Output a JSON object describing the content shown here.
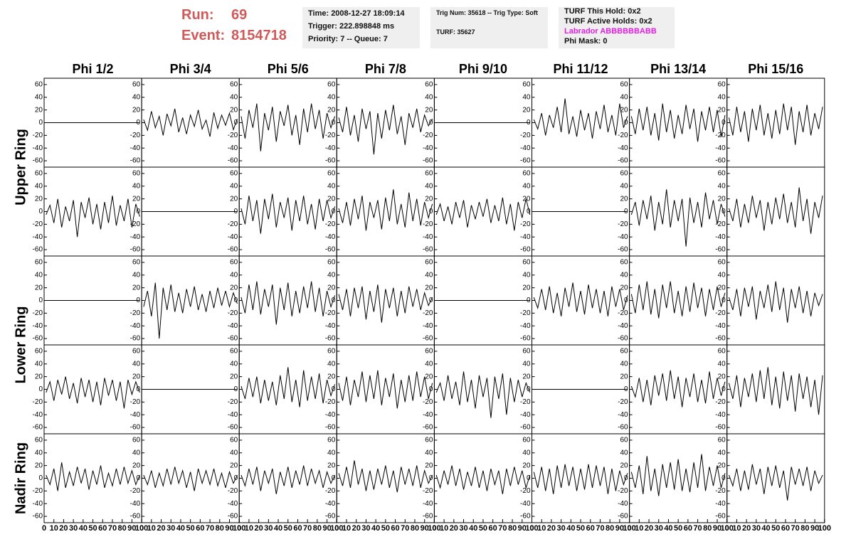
{
  "header": {
    "run_label": "Run:",
    "run": "69",
    "event_label": "Event:",
    "event": "8154718",
    "info": [
      [
        "Time: 2008-12-27 18:09:14",
        "Trigger: 222.898848 ms",
        "Priority: 7 -- Queue: 7"
      ],
      [
        "Trig Num: 35618 -- Trig Type: Soft",
        "TURF: 35627"
      ],
      [
        "TURF This Hold: 0x2",
        "TURF Active Holds: 0x2",
        "Labrador ABBBBBBABB",
        "Phi Mask: 0"
      ]
    ]
  },
  "chart_data": {
    "type": "line",
    "color": "#000000",
    "columns": [
      "Phi 1/2",
      "Phi 3/4",
      "Phi 5/6",
      "Phi 7/8",
      "Phi 9/10",
      "Phi 11/12",
      "Phi 13/14",
      "Phi 15/16"
    ],
    "row_labels": [
      "Upper Ring",
      null,
      "Lower Ring",
      null,
      "Nadir Ring"
    ],
    "xlim": [
      0,
      100
    ],
    "ylim": [
      -70,
      70
    ],
    "xticks": [
      0,
      10,
      20,
      30,
      40,
      50,
      60,
      70,
      80,
      90,
      100
    ],
    "yticks": [
      -60,
      -40,
      -20,
      0,
      20,
      40,
      60
    ],
    "x": [
      2,
      6,
      10,
      14,
      18,
      22,
      26,
      30,
      34,
      38,
      42,
      46,
      50,
      54,
      58,
      62,
      66,
      70,
      74,
      78,
      82,
      86,
      90,
      94,
      98
    ],
    "series": [
      {
        "values": [
          0,
          0,
          0,
          0,
          0,
          0,
          0,
          0,
          0,
          0,
          0,
          0,
          0,
          0,
          0,
          0,
          0,
          0,
          0,
          0,
          0,
          0,
          0,
          0,
          0
        ]
      },
      {
        "values": [
          5,
          -12,
          18,
          -8,
          10,
          -20,
          14,
          -5,
          22,
          -15,
          8,
          -18,
          12,
          -6,
          20,
          -10,
          4,
          -22,
          16,
          -9,
          12,
          -4,
          15,
          -11,
          6
        ]
      },
      {
        "values": [
          10,
          -25,
          20,
          -8,
          30,
          -45,
          15,
          -12,
          25,
          -30,
          18,
          -5,
          28,
          -20,
          12,
          -35,
          22,
          -15,
          30,
          -10,
          20,
          -25,
          15,
          -8,
          10
        ]
      },
      {
        "values": [
          8,
          -15,
          25,
          -20,
          12,
          -30,
          22,
          -10,
          18,
          -50,
          15,
          -25,
          20,
          -12,
          28,
          -18,
          10,
          -35,
          15,
          -8,
          22,
          -15,
          12,
          -5,
          6
        ]
      },
      {
        "values": [
          0,
          0,
          0,
          0,
          0,
          0,
          0,
          0,
          0,
          0,
          0,
          0,
          0,
          0,
          0,
          0,
          0,
          0,
          0,
          0,
          0,
          0,
          0,
          0,
          0
        ]
      },
      {
        "values": [
          5,
          -10,
          15,
          -20,
          12,
          -8,
          25,
          -15,
          38,
          -18,
          10,
          -22,
          20,
          -12,
          15,
          -25,
          18,
          -10,
          28,
          -15,
          12,
          -20,
          30,
          -8,
          10
        ]
      },
      {
        "values": [
          10,
          -18,
          22,
          -12,
          25,
          -20,
          15,
          -28,
          30,
          -15,
          20,
          -25,
          12,
          -18,
          28,
          -10,
          22,
          -30,
          18,
          -12,
          25,
          -15,
          20,
          -22,
          12
        ]
      },
      {
        "values": [
          8,
          -20,
          25,
          -15,
          18,
          -30,
          22,
          -12,
          28,
          -20,
          15,
          -25,
          20,
          -18,
          30,
          -12,
          25,
          -35,
          18,
          -15,
          28,
          -20,
          15,
          -10,
          25
        ]
      },
      {
        "values": [
          -5,
          10,
          -18,
          20,
          -25,
          8,
          -15,
          18,
          -40,
          15,
          -10,
          22,
          -20,
          12,
          -28,
          15,
          -18,
          25,
          -22,
          10,
          -15,
          20,
          -25,
          12,
          -8
        ]
      },
      {
        "values": [
          0,
          0,
          0,
          0,
          0,
          0,
          0,
          0,
          0,
          0,
          0,
          0,
          0,
          0,
          0,
          0,
          0,
          0,
          0,
          0,
          0,
          0,
          0,
          0,
          0
        ]
      },
      {
        "values": [
          5,
          -20,
          25,
          -15,
          18,
          -35,
          20,
          -12,
          28,
          -25,
          15,
          -10,
          22,
          -30,
          18,
          -15,
          25,
          -20,
          12,
          -28,
          20,
          -15,
          18,
          -10,
          8
        ]
      },
      {
        "values": [
          5,
          -18,
          15,
          -22,
          20,
          -12,
          25,
          -30,
          15,
          -10,
          18,
          -28,
          22,
          -15,
          35,
          -20,
          12,
          -25,
          30,
          -15,
          20,
          -22,
          15,
          -10,
          12
        ]
      },
      {
        "values": [
          -5,
          12,
          -15,
          8,
          -20,
          15,
          -10,
          18,
          -25,
          10,
          -12,
          15,
          -8,
          20,
          -18,
          10,
          -15,
          22,
          -20,
          12,
          -30,
          15,
          -10,
          20,
          -5
        ]
      },
      {
        "values": [
          0,
          0,
          0,
          0,
          0,
          0,
          0,
          0,
          0,
          0,
          0,
          0,
          0,
          0,
          0,
          0,
          0,
          0,
          0,
          0,
          0,
          0,
          0,
          0,
          0
        ]
      },
      {
        "values": [
          -5,
          15,
          -22,
          18,
          -12,
          25,
          -30,
          15,
          -20,
          35,
          -25,
          18,
          -15,
          20,
          -55,
          22,
          -18,
          15,
          -25,
          30,
          -12,
          18,
          -20,
          12,
          -8
        ]
      },
      {
        "values": [
          5,
          -15,
          20,
          -25,
          12,
          -18,
          25,
          -10,
          18,
          -30,
          15,
          -20,
          22,
          -12,
          28,
          -18,
          15,
          -25,
          38,
          -15,
          20,
          -35,
          15,
          -10,
          25
        ]
      },
      {
        "values": [
          0,
          0,
          0,
          0,
          0,
          0,
          0,
          0,
          0,
          0,
          0,
          0,
          0,
          0,
          0,
          0,
          0,
          0,
          0,
          0,
          0,
          0,
          0,
          0,
          0
        ]
      },
      {
        "values": [
          -10,
          15,
          -25,
          28,
          -60,
          20,
          -15,
          25,
          -18,
          12,
          -20,
          18,
          -10,
          22,
          -15,
          10,
          -18,
          15,
          -12,
          20,
          -8,
          15,
          -10,
          12,
          -5
        ]
      },
      {
        "values": [
          5,
          -20,
          25,
          -15,
          30,
          -22,
          18,
          -10,
          25,
          -38,
          20,
          -15,
          28,
          -25,
          15,
          -20,
          22,
          -12,
          30,
          -18,
          20,
          -25,
          15,
          -10,
          8
        ]
      },
      {
        "values": [
          10,
          -15,
          18,
          -25,
          20,
          -12,
          22,
          -30,
          15,
          -18,
          25,
          -35,
          18,
          -12,
          20,
          -25,
          15,
          -20,
          22,
          -10,
          18,
          -15,
          12,
          -8,
          5
        ]
      },
      {
        "values": [
          0,
          0,
          0,
          0,
          0,
          0,
          0,
          0,
          0,
          0,
          0,
          0,
          0,
          0,
          0,
          0,
          0,
          0,
          0,
          0,
          0,
          0,
          0,
          0,
          0
        ]
      },
      {
        "values": [
          5,
          -12,
          18,
          -15,
          22,
          -20,
          12,
          -25,
          20,
          -10,
          28,
          -18,
          15,
          -22,
          25,
          -12,
          18,
          -20,
          15,
          -25,
          22,
          -10,
          18,
          -15,
          8
        ]
      },
      {
        "values": [
          10,
          -20,
          25,
          -15,
          30,
          -22,
          18,
          -28,
          25,
          -12,
          30,
          -20,
          15,
          -25,
          22,
          -18,
          28,
          -12,
          20,
          -25,
          18,
          -15,
          22,
          -10,
          12
        ]
      },
      {
        "values": [
          5,
          -15,
          18,
          -25,
          20,
          -10,
          22,
          -30,
          15,
          -12,
          25,
          -18,
          30,
          -15,
          20,
          -35,
          18,
          -12,
          22,
          -20,
          15,
          -25,
          12,
          -8,
          10
        ]
      },
      {
        "values": [
          -5,
          12,
          -18,
          15,
          -8,
          20,
          -15,
          10,
          -22,
          18,
          -12,
          15,
          -20,
          12,
          -25,
          18,
          -10,
          15,
          -18,
          12,
          -30,
          15,
          -8,
          12,
          -5
        ]
      },
      {
        "values": [
          0,
          0,
          0,
          0,
          0,
          0,
          0,
          0,
          0,
          0,
          0,
          0,
          0,
          0,
          0,
          0,
          0,
          0,
          0,
          0,
          0,
          0,
          0,
          0,
          0
        ]
      },
      {
        "values": [
          5,
          -15,
          18,
          -12,
          20,
          -22,
          15,
          -18,
          12,
          -25,
          22,
          -15,
          35,
          -20,
          15,
          -28,
          30,
          -18,
          20,
          -15,
          25,
          -22,
          15,
          -10,
          8
        ]
      },
      {
        "values": [
          10,
          -18,
          20,
          -25,
          15,
          -12,
          28,
          -20,
          22,
          -15,
          30,
          -25,
          18,
          -12,
          25,
          -30,
          15,
          -20,
          22,
          -18,
          28,
          -12,
          20,
          -15,
          10
        ]
      },
      {
        "values": [
          -5,
          10,
          -18,
          22,
          -15,
          12,
          -25,
          28,
          -20,
          15,
          -30,
          22,
          -12,
          18,
          -45,
          20,
          -15,
          25,
          -40,
          18,
          -20,
          15,
          -12,
          10,
          -5
        ]
      },
      {
        "values": [
          0,
          0,
          0,
          0,
          0,
          0,
          0,
          0,
          0,
          0,
          0,
          0,
          0,
          0,
          0,
          0,
          0,
          0,
          0,
          0,
          0,
          0,
          0,
          0,
          0
        ]
      },
      {
        "values": [
          5,
          -12,
          18,
          -20,
          15,
          -25,
          22,
          -10,
          25,
          -18,
          30,
          -15,
          20,
          -28,
          18,
          -12,
          25,
          -20,
          15,
          -22,
          28,
          -15,
          18,
          -10,
          12
        ]
      },
      {
        "values": [
          10,
          -15,
          22,
          -28,
          18,
          -12,
          25,
          -20,
          30,
          -15,
          35,
          -25,
          20,
          -30,
          28,
          -18,
          22,
          -35,
          25,
          -15,
          20,
          -28,
          15,
          -40,
          22
        ]
      },
      {
        "values": [
          5,
          -10,
          15,
          -20,
          25,
          -15,
          10,
          -12,
          18,
          -8,
          15,
          -18,
          12,
          -10,
          20,
          -15,
          8,
          -12,
          15,
          -10,
          18,
          -8,
          12,
          -10,
          5
        ]
      },
      {
        "values": [
          5,
          -10,
          12,
          -15,
          8,
          -12,
          15,
          -10,
          18,
          -8,
          12,
          -15,
          10,
          -20,
          15,
          -8,
          12,
          -10,
          15,
          -12,
          8,
          -15,
          10,
          -8,
          5
        ]
      },
      {
        "values": [
          5,
          -12,
          15,
          -10,
          18,
          -20,
          12,
          -8,
          15,
          -25,
          10,
          -12,
          18,
          -15,
          12,
          -10,
          20,
          -12,
          15,
          -8,
          12,
          -15,
          10,
          -8,
          5
        ]
      },
      {
        "values": [
          8,
          -12,
          18,
          -15,
          28,
          -10,
          15,
          -20,
          12,
          -18,
          15,
          -10,
          20,
          -15,
          12,
          -22,
          18,
          -10,
          15,
          -12,
          20,
          -15,
          12,
          -8,
          5
        ]
      },
      {
        "values": [
          5,
          -15,
          12,
          -10,
          20,
          -12,
          15,
          -18,
          10,
          -12,
          18,
          -15,
          12,
          -20,
          15,
          -10,
          12,
          -25,
          15,
          -12,
          18,
          -10,
          12,
          -15,
          5
        ]
      },
      {
        "values": [
          10,
          -15,
          18,
          -20,
          15,
          -25,
          20,
          -15,
          22,
          -12,
          18,
          -20,
          15,
          -18,
          22,
          -15,
          20,
          -12,
          18,
          -25,
          15,
          -20,
          12,
          -10,
          8
        ]
      },
      {
        "values": [
          10,
          -15,
          20,
          -25,
          35,
          -20,
          15,
          -28,
          22,
          -15,
          25,
          -18,
          30,
          -20,
          15,
          -22,
          25,
          -15,
          38,
          -20,
          18,
          -12,
          20,
          -15,
          8
        ]
      },
      {
        "values": [
          5,
          -12,
          15,
          -20,
          12,
          -18,
          22,
          -10,
          15,
          -25,
          18,
          -12,
          20,
          -15,
          12,
          -35,
          18,
          -10,
          15,
          -12,
          18,
          -20,
          12,
          -8,
          5
        ]
      }
    ]
  }
}
